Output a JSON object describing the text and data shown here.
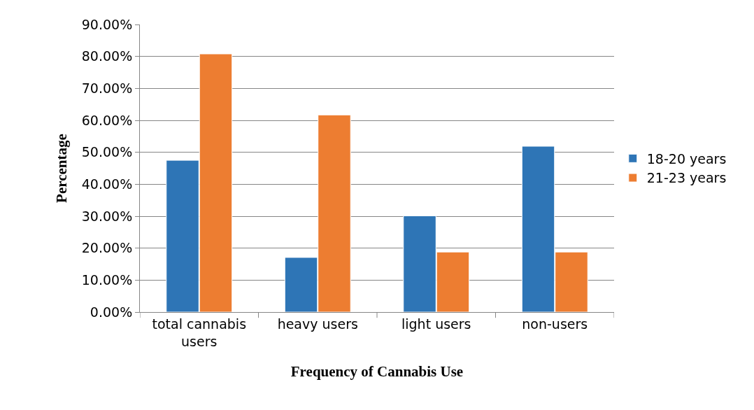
{
  "chart_data": {
    "type": "bar",
    "xlabel": "Frequency of Cannabis Use",
    "ylabel": "Percentage",
    "categories": [
      "total cannabis users",
      "heavy users",
      "light users",
      "non-users"
    ],
    "series": [
      {
        "name": "18-20 years",
        "color": "#2e75b6",
        "values": [
          47.5,
          17.1,
          30.1,
          51.9
        ]
      },
      {
        "name": "21-23 years",
        "color": "#ed7d31",
        "values": [
          80.8,
          61.7,
          18.8,
          18.8
        ]
      }
    ],
    "ylim": [
      0,
      90
    ],
    "yticks": [
      {
        "value": 0,
        "label": "0.00%"
      },
      {
        "value": 10,
        "label": "10.00%"
      },
      {
        "value": 20,
        "label": "20.00%"
      },
      {
        "value": 30,
        "label": "30.00%"
      },
      {
        "value": 40,
        "label": "40.00%"
      },
      {
        "value": 50,
        "label": "50.00%"
      },
      {
        "value": 60,
        "label": "60.00%"
      },
      {
        "value": 70,
        "label": "70.00%"
      },
      {
        "value": 80,
        "label": "80.00%"
      },
      {
        "value": 90,
        "label": "90.00%"
      }
    ],
    "grid": "y",
    "legend": "right"
  }
}
